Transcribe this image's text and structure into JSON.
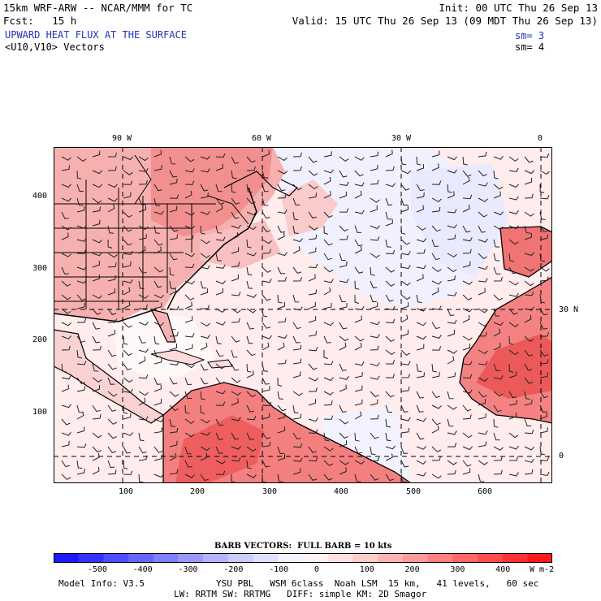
{
  "header": {
    "left1": "15km WRF-ARW -- NCAR/MMM for TC",
    "left2": "Fcst:   15 h",
    "field": "UPWARD HEAT FLUX AT THE SURFACE",
    "vectors": "<U10,V10> Vectors",
    "init": "Init: 00 UTC Thu 26 Sep 13",
    "valid": "Valid: 15 UTC Thu 26 Sep 13 (09 MDT Thu 26 Sep 13)",
    "sm1": "sm= 3",
    "sm2": "sm= 4"
  },
  "map": {
    "lon_labels": [
      "90 W",
      "60 W",
      "30 W",
      "0"
    ],
    "lat_label": "30 N",
    "lat_label_zero": "0",
    "y_ticks": [
      "400",
      "300",
      "200",
      "100"
    ],
    "x_ticks": [
      "100",
      "200",
      "300",
      "400",
      "500",
      "600"
    ]
  },
  "colorbar": {
    "caption": "BARB VECTORS:  FULL BARB = 10 kts",
    "labels": [
      "-500",
      "-400",
      "-300",
      "-200",
      "-100",
      "0",
      "100",
      "200",
      "300",
      "400"
    ],
    "units": "W m-2",
    "colors": [
      "#1a1aff",
      "#3333ff",
      "#4d4dff",
      "#6666ff",
      "#8080ff",
      "#9999ff",
      "#b3b3ff",
      "#ccccff",
      "#e0e0ff",
      "#f2f2ff",
      "#fff2f2",
      "#ffe0e0",
      "#ffcccc",
      "#ffb3b3",
      "#ff9999",
      "#ff8080",
      "#ff6666",
      "#ff4d4d",
      "#ff3333",
      "#ff1a1a"
    ]
  },
  "footer": {
    "model": "Model Info: V3.5",
    "line1": "YSU PBL   WSM 6class  Noah LSM  15 km,   41 levels,   60 sec",
    "line2": "LW: RRTM SW: RRTMG   DIFF: simple KM: 2D Smagor"
  }
}
